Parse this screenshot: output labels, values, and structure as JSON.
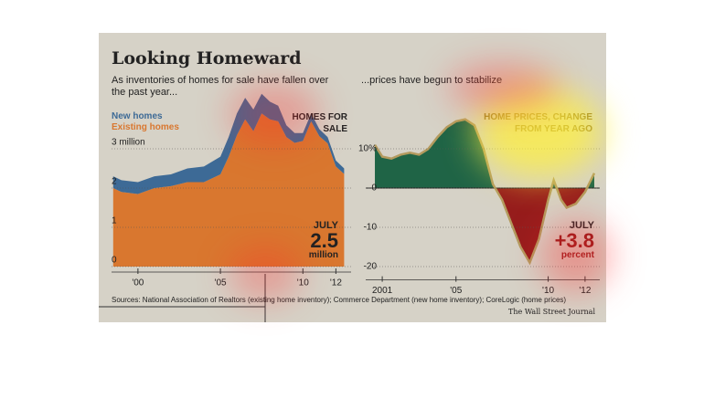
{
  "title": "Looking Homeward",
  "sources": "Sources: National Association of Realtors (existing home inventory); Commerce Department (new home inventory); CoreLogic (home prices)",
  "credit": "The Wall Street Journal",
  "chart_data": [
    {
      "type": "area",
      "stacked": true,
      "subtitle": "As inventories of homes for sale have fallen over the past year...",
      "annotation": "HOMES FOR SALE",
      "callout": {
        "label": "JULY",
        "value": "2.5",
        "unit": "million"
      },
      "x": [
        1998.5,
        1999,
        2000,
        2001,
        2002,
        2003,
        2004,
        2005,
        2005.5,
        2006,
        2006.5,
        2007,
        2007.5,
        2008,
        2008.5,
        2009,
        2009.5,
        2010,
        2010.5,
        2011,
        2011.5,
        2012,
        2012.5
      ],
      "series": [
        {
          "name": "New homes",
          "color": "#3d6a96",
          "values": [
            0.3,
            0.3,
            0.3,
            0.3,
            0.3,
            0.35,
            0.4,
            0.45,
            0.5,
            0.55,
            0.55,
            0.55,
            0.5,
            0.45,
            0.4,
            0.3,
            0.25,
            0.2,
            0.2,
            0.18,
            0.16,
            0.15,
            0.14
          ]
        },
        {
          "name": "Existing homes",
          "color": "#d9772f",
          "values": [
            2.0,
            1.9,
            1.85,
            2.0,
            2.05,
            2.15,
            2.15,
            2.35,
            2.8,
            3.35,
            3.75,
            3.45,
            3.9,
            3.75,
            3.7,
            3.3,
            3.15,
            3.2,
            3.7,
            3.32,
            3.14,
            2.55,
            2.36
          ]
        }
      ],
      "xlim": [
        1998.4,
        2012.7
      ],
      "xticks": [
        {
          "value": 2000,
          "label": "'00"
        },
        {
          "value": 2005,
          "label": "'05"
        },
        {
          "value": 2010,
          "label": "'10"
        },
        {
          "value": 2012,
          "label": "'12"
        }
      ],
      "ylim": [
        0,
        4.4
      ],
      "yticks": [
        0,
        1,
        2,
        {
          "value": 3,
          "label": "3 million"
        }
      ],
      "grid": true
    },
    {
      "type": "line",
      "subtitle": "...prices have begun to stabilize",
      "annotation": "HOME PRICES, CHANGE FROM YEAR AGO",
      "callout": {
        "label": "JULY",
        "value": "+3.8",
        "unit": "percent"
      },
      "x": [
        2000.6,
        2001,
        2001.5,
        2002,
        2002.5,
        2003,
        2003.5,
        2004,
        2004.5,
        2005,
        2005.5,
        2006,
        2006.5,
        2007,
        2007.5,
        2008,
        2008.5,
        2009,
        2009.5,
        2010,
        2010.3,
        2010.7,
        2011,
        2011.5,
        2012,
        2012.5
      ],
      "series": [
        {
          "name": "Home prices",
          "color": "#b39a5e",
          "values": [
            11,
            8,
            7.5,
            8.5,
            9,
            8.5,
            10,
            13,
            15.5,
            17,
            17.5,
            16,
            10,
            1,
            -3,
            -9,
            -15,
            -19,
            -13,
            -3,
            2,
            -3,
            -5,
            -4,
            -1,
            3.8
          ]
        }
      ],
      "fill_positive": "#1f6446",
      "fill_negative": "#961c1c",
      "xlim": [
        2000.5,
        2012.6
      ],
      "xticks": [
        2001,
        {
          "value": 2005,
          "label": "'05"
        },
        {
          "value": 2010,
          "label": "'10"
        },
        {
          "value": 2012,
          "label": "'12"
        }
      ],
      "ylim": [
        -22,
        19
      ],
      "yticks": [
        {
          "value": 10,
          "label": "10%"
        },
        0,
        -10,
        -20
      ],
      "grid": true
    }
  ]
}
